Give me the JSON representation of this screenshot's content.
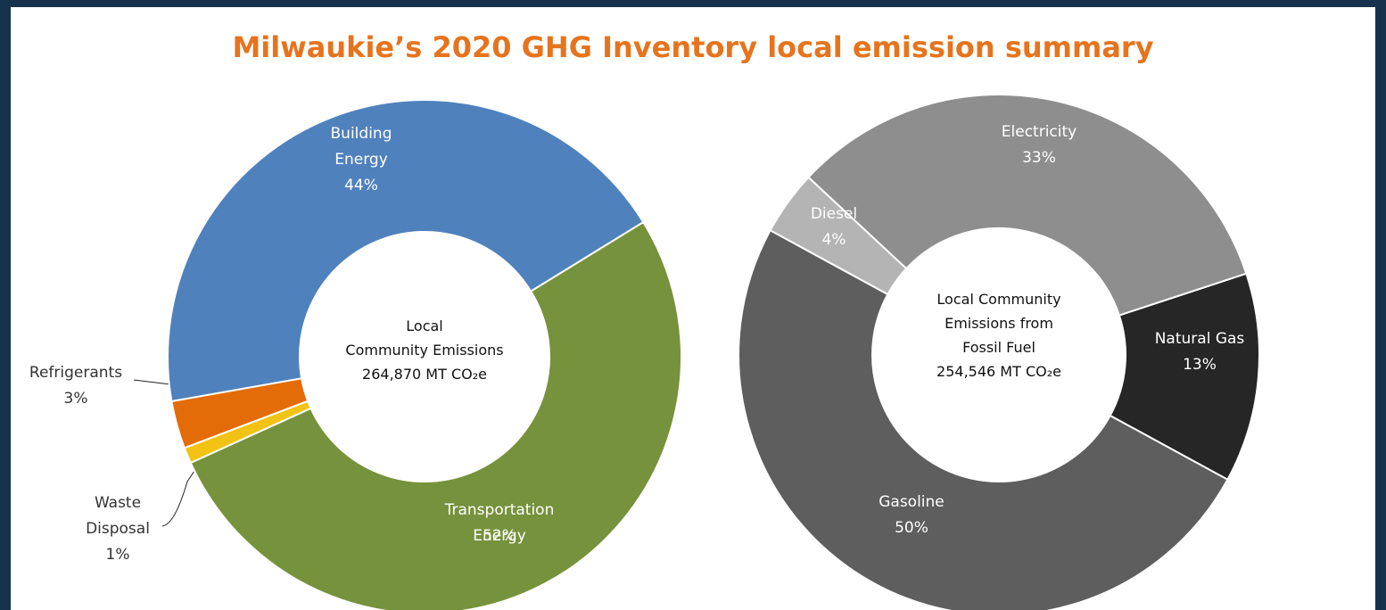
{
  "title": "Milwaukie’s 2020 GHG Inventory local emission summary",
  "chart_data": [
    {
      "type": "donut",
      "center_text": [
        "Local",
        "Community Emissions",
        "264,870 MT CO₂e"
      ],
      "categories": [
        "Building Energy",
        "Transportation Energy",
        "Waste Disposal",
        "Refrigerants"
      ],
      "values": [
        44,
        52,
        1,
        3
      ],
      "value_labels": [
        "44%",
        "52%",
        "1%",
        "3%"
      ],
      "colors": [
        "#4f81bd",
        "#76923c",
        "#f2c314",
        "#e36c09"
      ]
    },
    {
      "type": "donut",
      "center_text": [
        "Local Community",
        "Emissions from",
        "Fossil Fuel",
        "254,546 MT CO₂e"
      ],
      "categories": [
        "Electricity",
        "Natural Gas",
        "Gasoline",
        "Diesel"
      ],
      "values": [
        33,
        13,
        50,
        4
      ],
      "value_labels": [
        "33%",
        "13%",
        "50%",
        "4%"
      ],
      "colors": [
        "#8e8e8e",
        "#262626",
        "#5e5e5e",
        "#b4b4b4"
      ]
    }
  ]
}
